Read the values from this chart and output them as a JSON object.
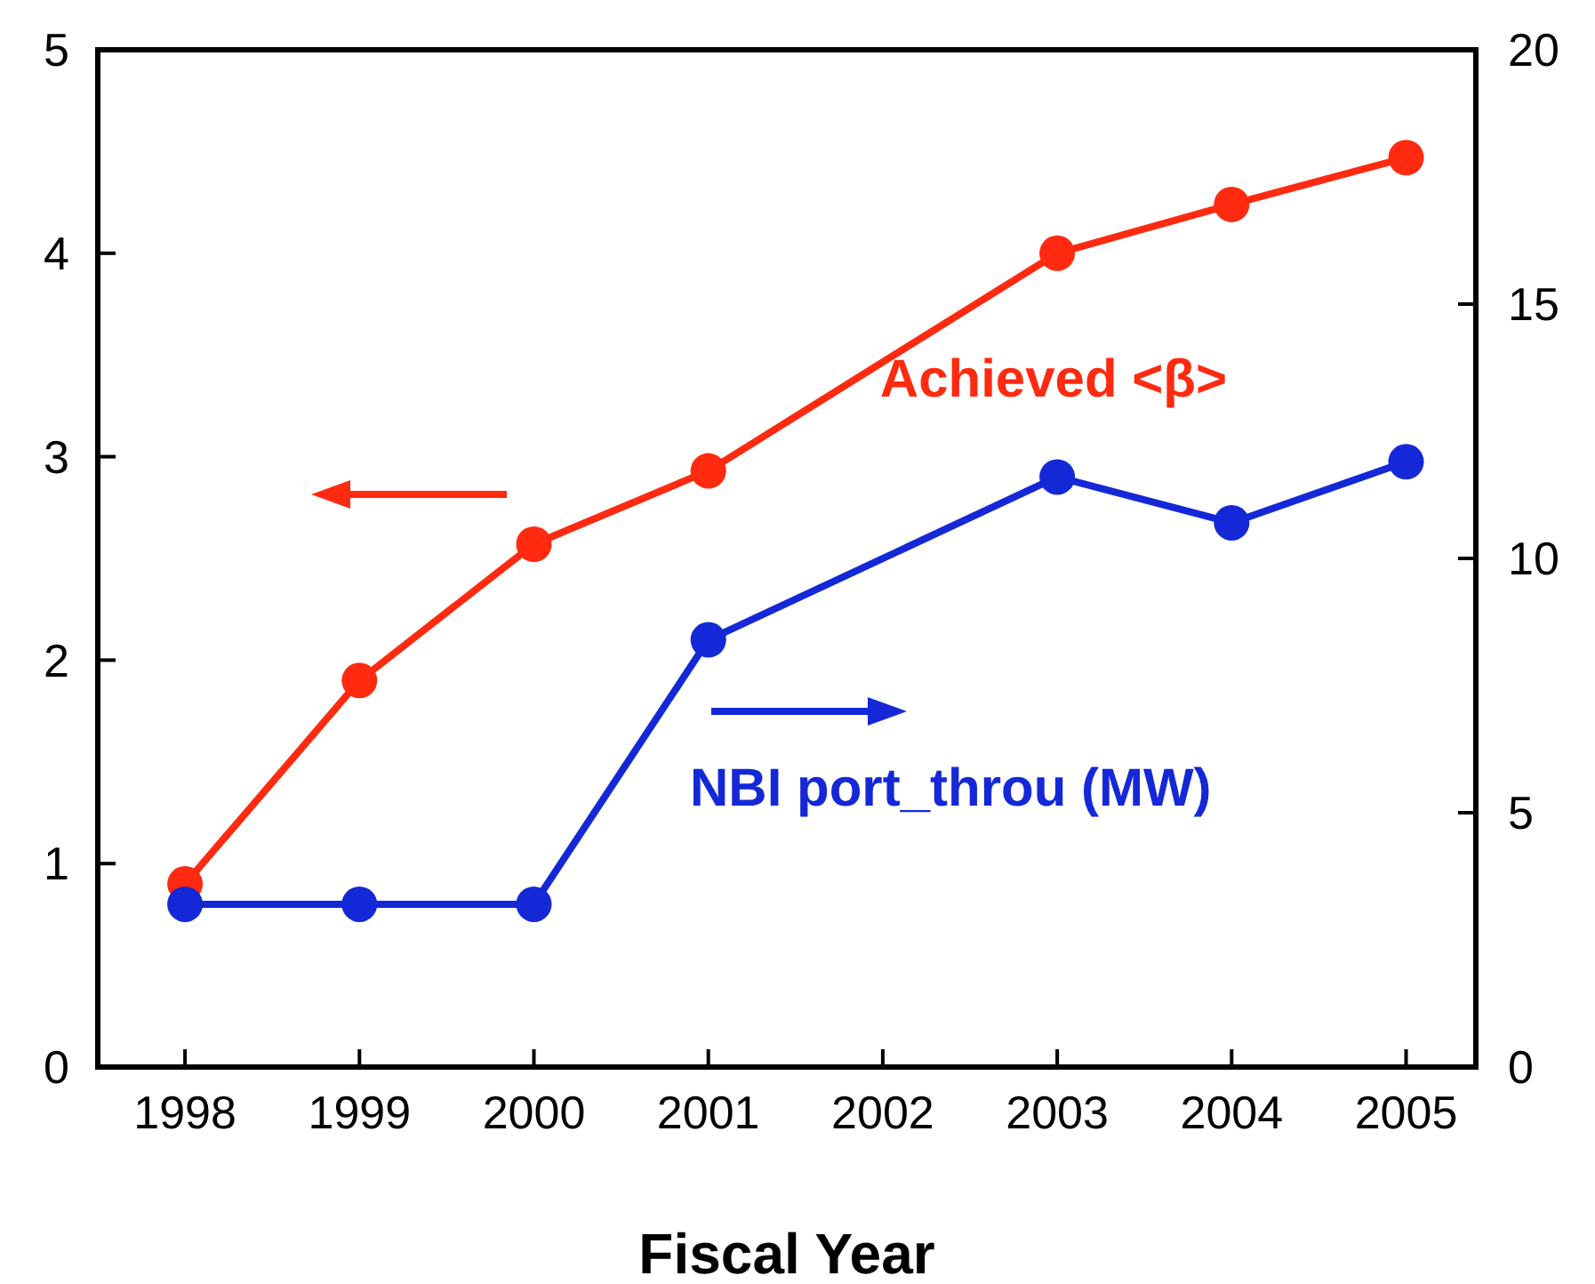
{
  "chart_data": {
    "type": "line",
    "xlabel": "Fiscal Year",
    "xlim": [
      1997.5,
      2005.4
    ],
    "xticks": [
      1998,
      1999,
      2000,
      2001,
      2002,
      2003,
      2004,
      2005
    ],
    "ylim": [
      0,
      5
    ],
    "yticks": [
      0,
      1,
      2,
      3,
      4,
      5
    ],
    "y2lim": [
      0,
      20
    ],
    "y2ticks": [
      0,
      5,
      10,
      15,
      20
    ],
    "grid": false,
    "legend": "right",
    "marker": "circle",
    "line_style": "solid",
    "series": [
      {
        "name": "Achieved <β>",
        "color": "#ff2a10",
        "x": [
          1998,
          1999,
          2000,
          2001,
          2003,
          2004,
          2005
        ],
        "values": [
          0.9,
          1.9,
          2.57,
          2.93,
          4.0,
          4.24,
          4.47
        ]
      },
      {
        "name": "NBI port_throu (MW)",
        "color": "#1428d8",
        "axis": "y2",
        "x": [
          1998,
          1999,
          2000,
          2001,
          2003,
          2004,
          2005
        ],
        "values": [
          3.2,
          3.2,
          3.2,
          8.4,
          11.6,
          10.7,
          11.9
        ]
      }
    ]
  }
}
